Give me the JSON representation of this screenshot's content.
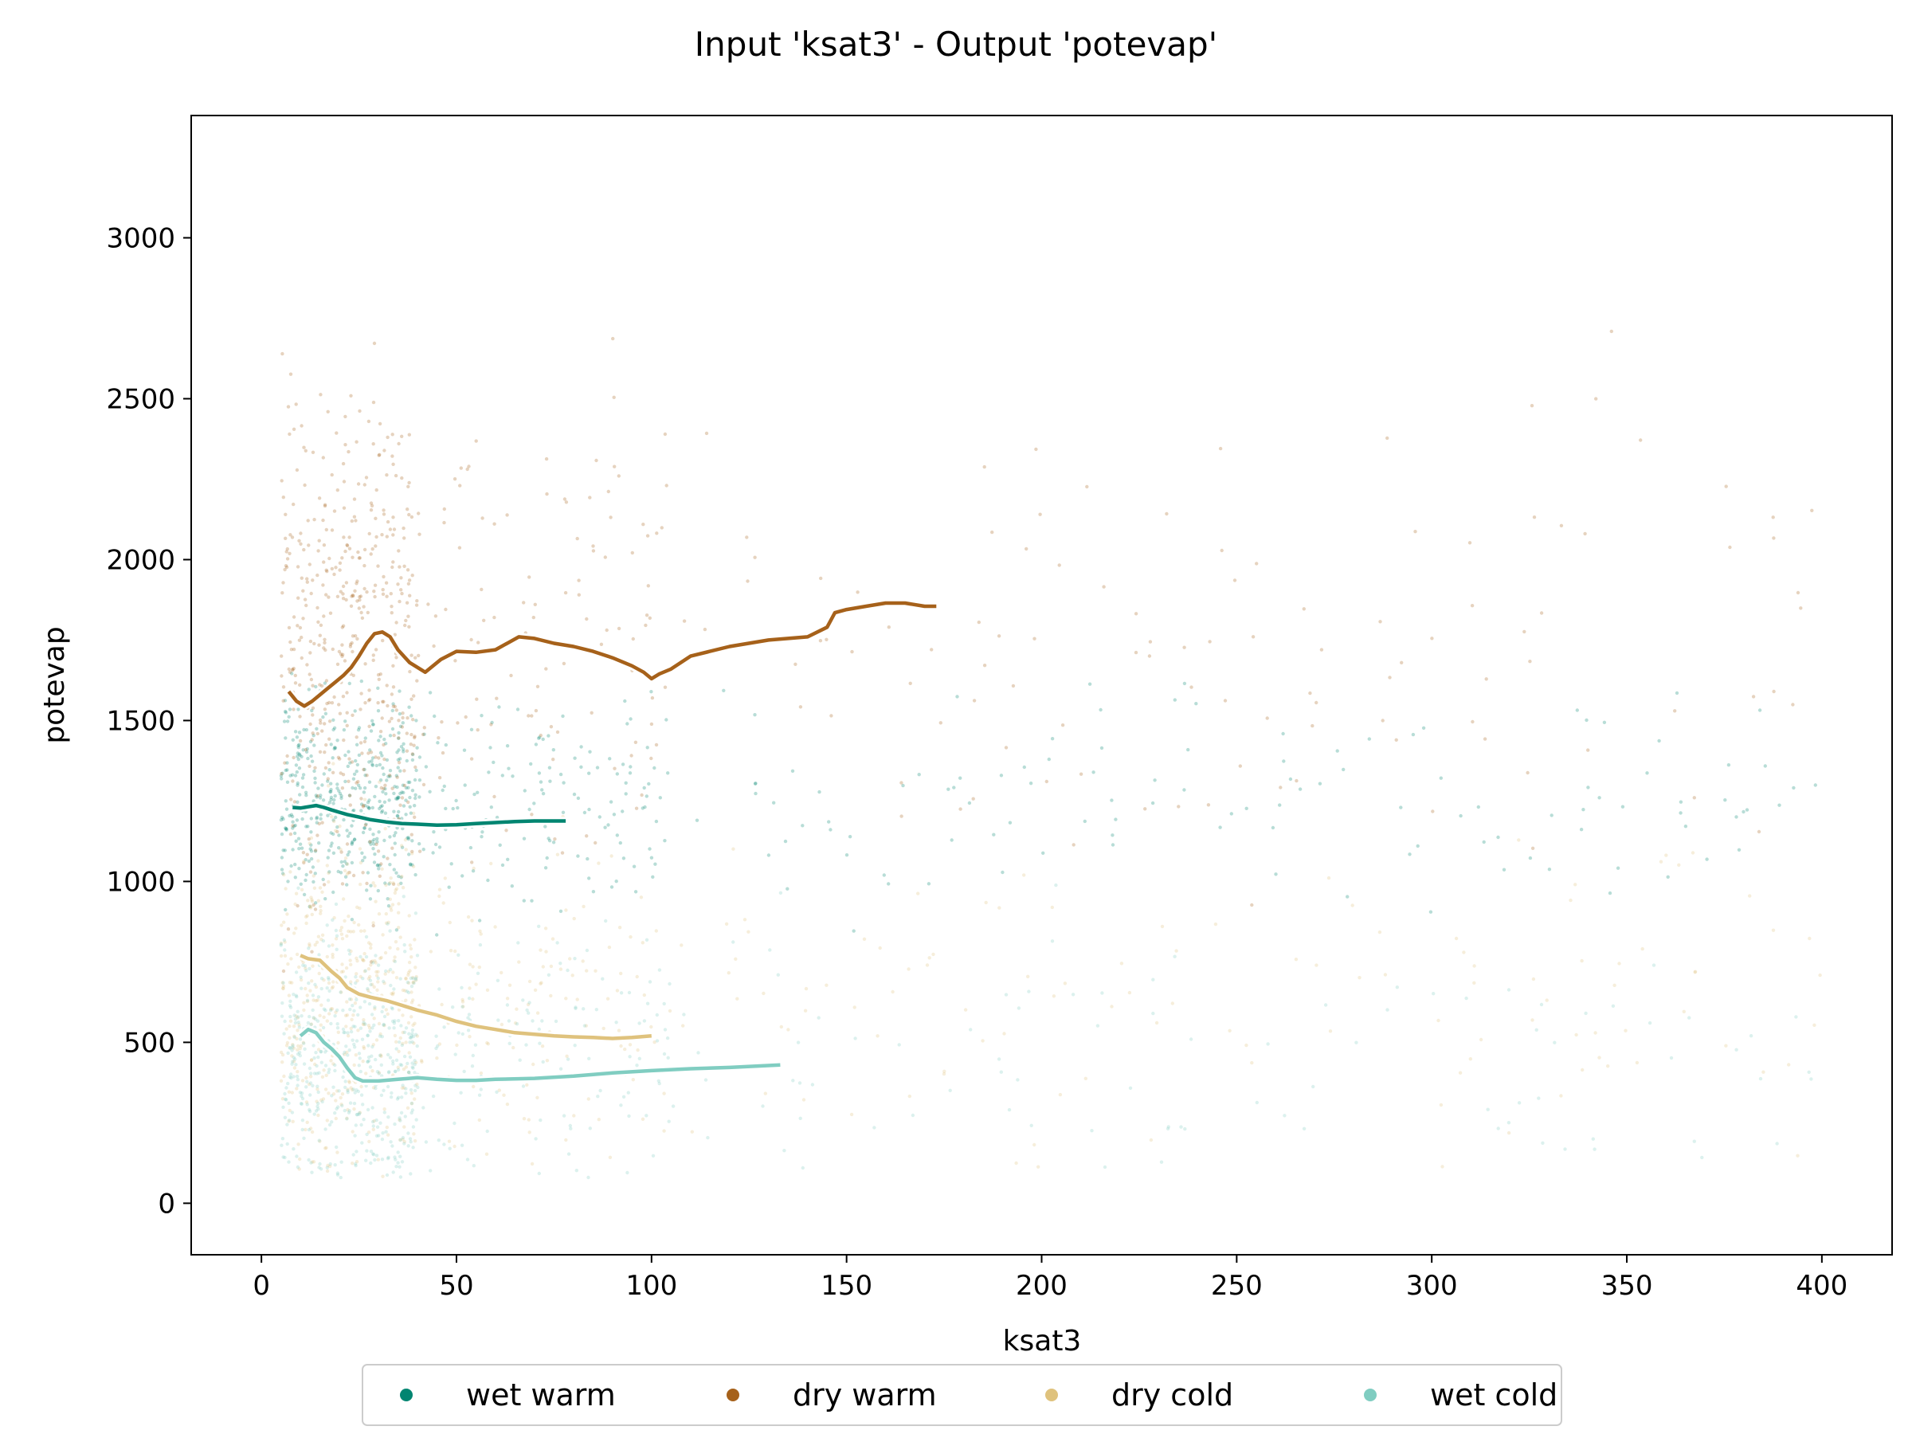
{
  "chart_data": {
    "type": "scatter",
    "title": "Input 'ksat3' - Output 'potevap'",
    "xlabel": "ksat3",
    "ylabel": "potevap",
    "xlim": [
      -18,
      418
    ],
    "ylim": [
      -160,
      3380
    ],
    "xticks": [
      0,
      50,
      100,
      150,
      200,
      250,
      300,
      350,
      400
    ],
    "yticks": [
      0,
      500,
      1000,
      1500,
      2000,
      2500,
      3000
    ],
    "grid": false,
    "legend_position": "below plot, centered",
    "series": [
      {
        "name": "wet warm",
        "color": "#018571",
        "scatter_center": 1250,
        "scatter_spread": 160,
        "trend": {
          "x": [
            8,
            10,
            12,
            14,
            16,
            18,
            20,
            22,
            25,
            28,
            32,
            36,
            40,
            45,
            50,
            55,
            60,
            65,
            70,
            78
          ],
          "y": [
            1230,
            1228,
            1232,
            1236,
            1230,
            1222,
            1215,
            1208,
            1200,
            1192,
            1185,
            1180,
            1178,
            1175,
            1176,
            1180,
            1183,
            1186,
            1188,
            1188
          ]
        }
      },
      {
        "name": "dry warm",
        "color": "#a6611a",
        "scatter_center": 1750,
        "scatter_spread": 380,
        "trend": {
          "x": [
            7,
            9,
            11,
            13,
            15,
            17,
            19,
            21,
            23,
            25,
            27,
            29,
            31,
            33,
            35,
            38,
            42,
            46,
            50,
            55,
            60,
            66,
            70,
            75,
            80,
            85,
            90,
            95,
            98,
            100,
            102,
            105,
            110,
            120,
            130,
            140,
            145,
            147,
            150,
            155,
            160,
            165,
            170,
            173
          ],
          "y": [
            1590,
            1560,
            1545,
            1560,
            1580,
            1600,
            1620,
            1640,
            1665,
            1700,
            1740,
            1770,
            1775,
            1760,
            1720,
            1680,
            1650,
            1690,
            1715,
            1712,
            1720,
            1760,
            1755,
            1740,
            1730,
            1715,
            1695,
            1670,
            1650,
            1630,
            1645,
            1660,
            1700,
            1730,
            1750,
            1760,
            1790,
            1835,
            1845,
            1855,
            1865,
            1865,
            1855,
            1855
          ]
        }
      },
      {
        "name": "dry cold",
        "color": "#dfc27d",
        "scatter_center": 650,
        "scatter_spread": 260,
        "trend": {
          "x": [
            10,
            12,
            15,
            18,
            20,
            22,
            25,
            28,
            32,
            36,
            40,
            45,
            50,
            55,
            60,
            65,
            70,
            75,
            80,
            85,
            90,
            95,
            100
          ],
          "y": [
            770,
            760,
            755,
            720,
            700,
            670,
            650,
            640,
            630,
            615,
            600,
            585,
            565,
            550,
            540,
            530,
            525,
            520,
            517,
            515,
            512,
            515,
            520
          ]
        }
      },
      {
        "name": "wet cold",
        "color": "#80cdc1",
        "scatter_center": 450,
        "scatter_spread": 200,
        "trend": {
          "x": [
            10,
            12,
            14,
            16,
            18,
            20,
            22,
            24,
            26,
            30,
            35,
            40,
            45,
            50,
            55,
            60,
            70,
            80,
            90,
            100,
            110,
            120,
            133
          ],
          "y": [
            520,
            540,
            530,
            500,
            480,
            455,
            420,
            390,
            380,
            380,
            385,
            390,
            385,
            382,
            382,
            385,
            388,
            395,
            405,
            412,
            418,
            422,
            430
          ]
        }
      }
    ]
  }
}
